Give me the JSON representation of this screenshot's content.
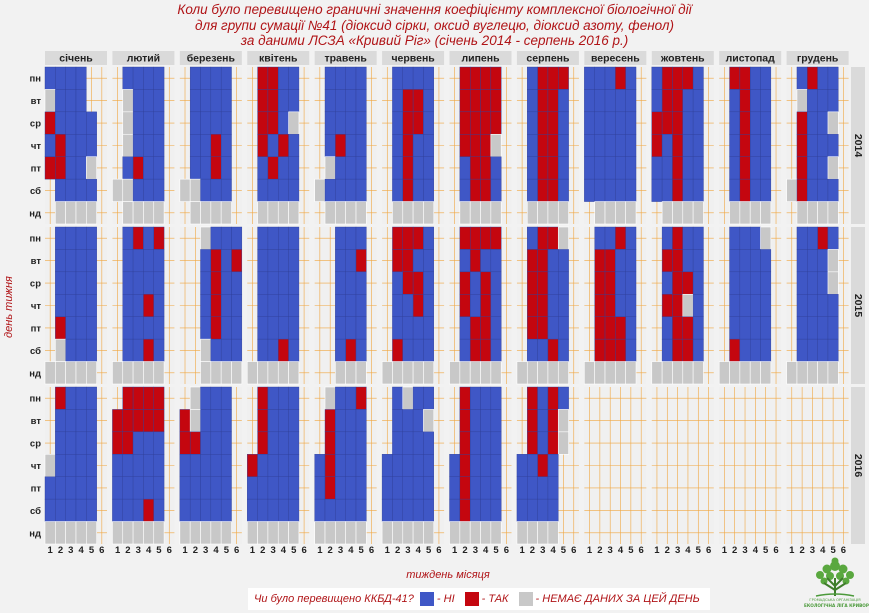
{
  "title_lines": [
    "Коли було перевищено граничні значення коефіцієнту комплексної біологічної дії",
    "для групи сумації №41 (діоксид сірки, оксид вуглецю, діоксид азоту, фенол)",
    "за даними ЛСЗА «Кривий Ріг» (січень 2014 - серпень 2016 р.)"
  ],
  "legend": {
    "question": "Чи було перевищено ККБД-41?",
    "no_label": "- НІ",
    "yes_label": "- ТАК",
    "nodata_label": "- НЕМАЄ ДАНИХ ЗА ЦЕЙ ДЕНЬ"
  },
  "logo": {
    "icon": "tree-icon",
    "line1": "ГРОМАДСЬКА ОРГАНІЗАЦІЯ",
    "line2": "ЕКОЛОГІЧНА ЛІГА КРИВОРІЖЖЯ"
  },
  "colors": {
    "no": "#3f57c6",
    "yes": "#c4060f",
    "nodata": "#c8c8c8",
    "grid": "#f0a640",
    "panel_bg": "#f0f0f0",
    "strip_bg": "#dadada",
    "text_red": "#b01417"
  },
  "chart_data": {
    "type": "heatmap",
    "xlabel": "тиждень місяця",
    "ylabel": "день тижня",
    "x_ticks": [
      "1",
      "2",
      "3",
      "4",
      "5",
      "6"
    ],
    "y_ticks": [
      "пн",
      "вт",
      "ср",
      "чт",
      "пт",
      "сб",
      "нд"
    ],
    "months": [
      "січень",
      "лютий",
      "березень",
      "квітень",
      "травень",
      "червень",
      "липень",
      "серпень",
      "вересень",
      "жовтень",
      "листопад",
      "грудень"
    ],
    "years": [
      "2014",
      "2015",
      "2016"
    ],
    "encoding": "rows = days пн..нд; each string lists weeks 1..6; N = ні, Y = так, G = немає даних, . = дня немає",
    "cells": {
      "2014": [
        [
          "NNNN..",
          ".NNNN.",
          ".NNNN.",
          ".YYNN.",
          ".NNNN.",
          ".NNNN.",
          ".YYYY.",
          ".NYYY.",
          "NNNYN.",
          "NYYYN.",
          ".YYNN.",
          ".NYNN."
        ],
        [
          "GNNN..",
          ".GNNN.",
          ".NNNN.",
          ".YYNN.",
          ".NNNN.",
          ".NYYN.",
          ".YYYY.",
          ".NYYN.",
          "NNNNN.",
          "NYYNN.",
          ".NYNN.",
          ".GNNN."
        ],
        [
          "YNNNN.",
          ".GNNN.",
          ".NNNN.",
          ".YYNG.",
          ".NNNN.",
          ".NYYN.",
          ".YYYY.",
          ".NYYN.",
          "NNNNN.",
          "YYYNN.",
          ".NYNN.",
          ".YNNG."
        ],
        [
          "NYNNN.",
          ".GNNN.",
          ".NNYN.",
          ".YNYN.",
          ".NYNN.",
          ".NYNN.",
          ".YYYG.",
          ".NYYN.",
          "NNNNN.",
          "YNYNN.",
          ".NYNN.",
          ".YNNN."
        ],
        [
          "YYNNG.",
          ".NYNN.",
          ".NNYN.",
          ".NYNN.",
          ".GNNN.",
          ".NYNN.",
          ".NYYN.",
          ".NYYN.",
          "NNNNN.",
          "NNYNN.",
          ".NYNN.",
          ".YNNG."
        ],
        [
          ".NNNN.",
          "GGNNN.",
          "GGNNN.",
          ".NNNN.",
          "GNNNN.",
          ".NYNN.",
          ".NYYN.",
          ".NYYN.",
          "NNNNN.",
          "NNYNN.",
          ".NYNN.",
          "GYNNN."
        ],
        [
          ".GGGG.",
          ".GGGG.",
          ".GGGG.",
          ".GGGG.",
          ".GGGG.",
          ".GGGG.",
          ".GGGG.",
          ".GGGG.",
          ".GGGG.",
          ".GGGG.",
          ".GGGG.",
          ".GGGG."
        ]
      ],
      "2015": [
        [
          ".NNNN.",
          ".NYNY.",
          "..GNNN",
          ".NNNN.",
          "..NNN.",
          ".YYYN.",
          ".YYYY.",
          ".NYYG.",
          ".NNYN.",
          ".NYNN.",
          ".NNNG.",
          ".NNYN."
        ],
        [
          ".NNNN.",
          ".NNNN.",
          "..NYNY",
          ".NNNN.",
          "..NNY.",
          ".YYNN.",
          ".NYNN.",
          ".YYNN.",
          ".YYNN.",
          ".YYNN.",
          ".NNNN.",
          ".NNNG."
        ],
        [
          ".NNNN.",
          ".NNNN.",
          "..NYNN",
          ".NNNN.",
          "..NNN.",
          ".NYYN.",
          ".YNYN.",
          ".YYNN.",
          ".YYNN.",
          ".NYYN.",
          ".NNNN.",
          ".NNNG."
        ],
        [
          ".NNNN.",
          ".NNYN.",
          "..NYNN",
          ".NNNN.",
          "..NNN.",
          ".NNYN.",
          ".YNYN.",
          ".YYNN.",
          ".YYNN.",
          ".YYGN.",
          ".NNNN.",
          ".NNNN."
        ],
        [
          ".YNNN.",
          ".NNNN.",
          "..NYNN",
          ".NNNN.",
          "..NNN.",
          ".NNNN.",
          ".NYYN.",
          ".YYNN.",
          ".YYYN.",
          ".NYYN.",
          ".NNNN.",
          ".NNNN."
        ],
        [
          ".GNNN.",
          ".NNYN.",
          "..GNNN",
          ".NNYN.",
          "..NYN.",
          ".YNNN.",
          ".NYYN.",
          ".NNYN.",
          ".YYYN.",
          ".NYYN.",
          ".YNNN.",
          ".NNNN."
        ],
        [
          "GGGGG.",
          "GGGGG.",
          "..GGGG",
          "GGGGG.",
          "..GGG.",
          "GGGGG.",
          "GGGGG.",
          "GGGGG.",
          "GGGGG.",
          "GGGGG.",
          "GGGGG.",
          "GGGGG."
        ]
      ],
      "2016": [
        [
          ".YNNN.",
          ".YYYY.",
          ".GNNN.",
          ".YNNN.",
          ".GNNY.",
          ".NGNN.",
          ".YNNN.",
          ".YNYN.",
          "......",
          "......",
          "......",
          "......"
        ],
        [
          ".NNNN.",
          "YYYYY.",
          "YGNNN.",
          ".YNNN.",
          ".YNNN.",
          ".NNNG.",
          ".YNNN.",
          ".YNYG.",
          "......",
          "......",
          "......",
          "......"
        ],
        [
          ".NNNN.",
          "YYNNN.",
          "YYNNN.",
          ".YNNN.",
          ".YNNN.",
          ".NNNN.",
          ".YNNN.",
          ".YNYG.",
          "......",
          "......",
          "......",
          "......"
        ],
        [
          "GNNNN.",
          "NNNNN.",
          "NNNNN.",
          "YNNNN.",
          "NYNNN.",
          "NNNNN.",
          "NYNNN.",
          "NNYN..",
          "......",
          "......",
          "......",
          "......"
        ],
        [
          "NNNNN.",
          "NNNNN.",
          "NNNNN.",
          "NNNNN.",
          "NYNNN.",
          "NNNNN.",
          "NYNNN.",
          "NNNN..",
          "......",
          "......",
          "......",
          "......"
        ],
        [
          "NNNNN.",
          "NNNYN.",
          "NNNNN.",
          "NNNNN.",
          "NNNNN.",
          "NNNNN.",
          "NYNNN.",
          "NNNN..",
          "......",
          "......",
          "......",
          "......"
        ],
        [
          "GGGGG.",
          "GGGGG.",
          "GGGGG.",
          "GGGGG.",
          "GGGGG.",
          "GGGGG.",
          "GGGGG.",
          "GGGG..",
          "......",
          "......",
          "......",
          "......"
        ]
      ]
    }
  }
}
